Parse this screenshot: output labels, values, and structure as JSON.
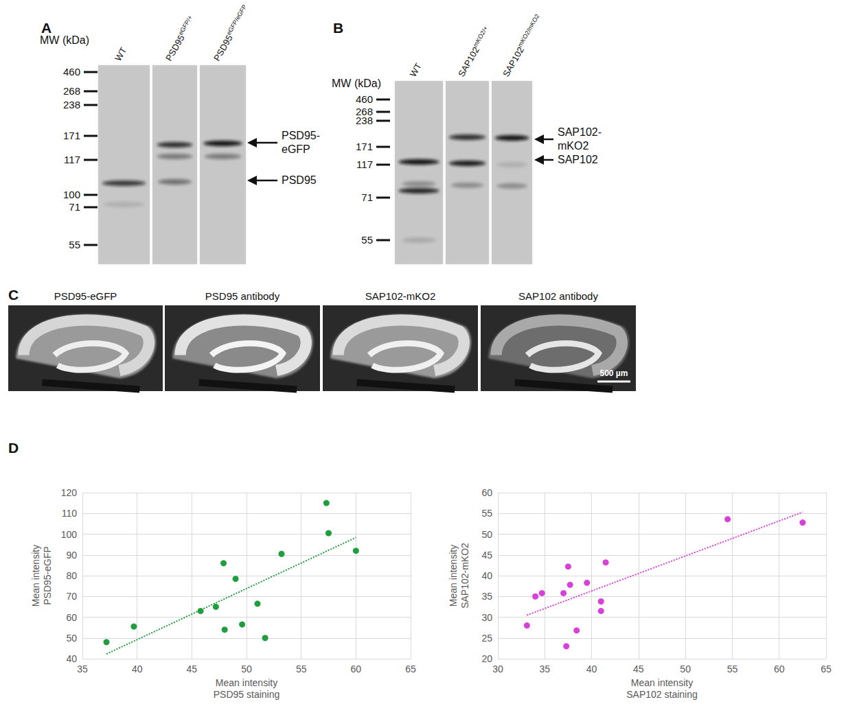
{
  "blots": [
    {
      "letter": "A",
      "mw_title": "MW (kDa)",
      "mw_markers": [
        460,
        268,
        238,
        171,
        117,
        100,
        71,
        55
      ],
      "lanes": [
        {
          "text": "WT"
        },
        {
          "text": "PSD95",
          "sup": "eGFP/+"
        },
        {
          "text": "PSD95",
          "sup": "eGFP/eGFP"
        }
      ],
      "arrows": [
        "PSD95-\neGFP",
        "PSD95"
      ]
    },
    {
      "letter": "B",
      "mw_title": "MW (kDa)",
      "mw_markers": [
        460,
        268,
        238,
        171,
        117,
        71,
        55
      ],
      "lanes": [
        {
          "text": "WT"
        },
        {
          "text": "SAP102",
          "sup": "mKO2/+"
        },
        {
          "text": "SAP102",
          "sup": "mKO2/mKO2"
        }
      ],
      "arrows": [
        "SAP102-\nmKO2",
        "SAP102"
      ]
    }
  ],
  "images": {
    "letter": "C",
    "titles": [
      "PSD95-eGFP",
      "PSD95 antibody",
      "SAP102-mKO2",
      "SAP102 antibody"
    ],
    "scale_bar": "500 µm"
  },
  "charts_letter": "D",
  "chart_data": [
    {
      "type": "scatter",
      "xlabel": "Mean intensity\nPSD95 staining",
      "ylabel": "Mean intensity\nPSD95-eGFP",
      "xlim": [
        35,
        65
      ],
      "xticks": [
        35,
        40,
        45,
        50,
        55,
        60,
        65
      ],
      "ylim": [
        40,
        120
      ],
      "yticks": [
        40,
        50,
        60,
        70,
        80,
        90,
        100,
        110,
        120
      ],
      "grid": true,
      "series": [
        {
          "type": "scatter",
          "color": "#1e9e3c",
          "marker": "circle",
          "x": [
            37.2,
            39.7,
            45.8,
            47.2,
            47.9,
            48.0,
            49.0,
            49.6,
            51.0,
            51.7,
            53.2,
            57.3,
            57.5,
            60.0
          ],
          "values": [
            48,
            55.5,
            63,
            65,
            86,
            54,
            78.5,
            56.5,
            66.5,
            50,
            90.5,
            115,
            100.5,
            92
          ]
        },
        {
          "type": "line",
          "color": "#1e9e3c",
          "line_style": "dotted",
          "x": [
            37.2,
            60.0
          ],
          "values": [
            42.3,
            98.4
          ]
        }
      ]
    },
    {
      "type": "scatter",
      "xlabel": "Mean intensity\nSAP102 staining",
      "ylabel": "Mean intensity\nSAP102-mKO2",
      "xlim": [
        30,
        65
      ],
      "xticks": [
        30,
        35,
        40,
        45,
        50,
        55,
        60,
        65
      ],
      "ylim": [
        20,
        60
      ],
      "yticks": [
        20,
        25,
        30,
        35,
        40,
        45,
        50,
        55,
        60
      ],
      "grid": true,
      "series": [
        {
          "type": "scatter",
          "color": "#d93fd9",
          "marker": "circle",
          "x": [
            33.1,
            34.0,
            34.7,
            37.0,
            37.3,
            37.5,
            37.7,
            38.4,
            39.5,
            41.0,
            41.0,
            41.5,
            54.5,
            62.5
          ],
          "values": [
            28,
            35,
            35.8,
            35.8,
            23,
            42.2,
            37.8,
            26.8,
            38.3,
            33.8,
            31.5,
            43.2,
            53.6,
            52.8
          ]
        },
        {
          "type": "line",
          "color": "#d93fd9",
          "line_style": "dotted",
          "x": [
            33.1,
            62.5
          ],
          "values": [
            30.5,
            55.3
          ]
        }
      ]
    }
  ]
}
